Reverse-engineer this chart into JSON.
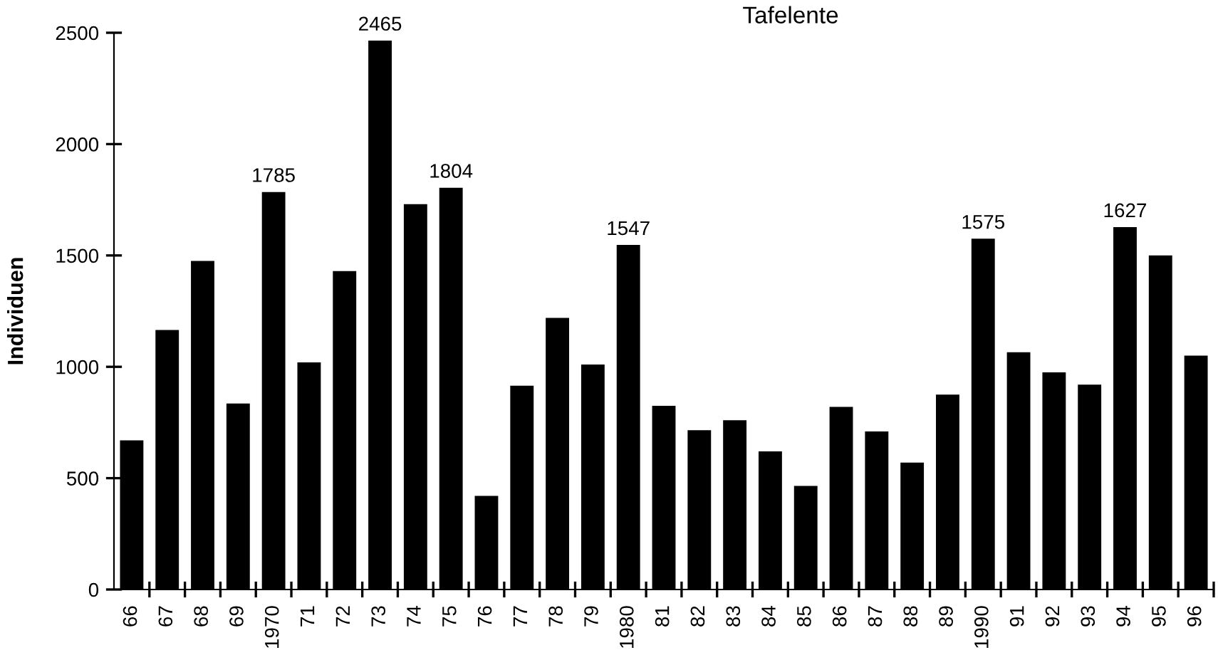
{
  "chart_data": {
    "type": "bar",
    "title": "Tafelente",
    "ylabel": "Individuen",
    "categories": [
      "66",
      "67",
      "68",
      "69",
      "1970",
      "71",
      "72",
      "73",
      "74",
      "75",
      "76",
      "77",
      "78",
      "79",
      "1980",
      "81",
      "82",
      "83",
      "84",
      "85",
      "86",
      "87",
      "88",
      "89",
      "1990",
      "91",
      "92",
      "93",
      "94",
      "95",
      "96"
    ],
    "values": [
      670,
      1165,
      1475,
      835,
      1785,
      1020,
      1430,
      2465,
      1730,
      1804,
      420,
      915,
      1220,
      1010,
      1547,
      825,
      715,
      760,
      620,
      465,
      820,
      710,
      570,
      875,
      1575,
      1065,
      975,
      920,
      1627,
      1500,
      1050
    ],
    "value_labels": [
      null,
      null,
      null,
      null,
      "1785",
      null,
      null,
      "2465",
      null,
      "1804",
      null,
      null,
      null,
      null,
      "1547",
      null,
      null,
      null,
      null,
      null,
      null,
      null,
      null,
      null,
      "1575",
      null,
      null,
      null,
      "1627",
      null,
      null
    ],
    "color": "#000000",
    "ylim": [
      0,
      2500
    ],
    "yticks": [
      0,
      500,
      1000,
      1500,
      2000,
      2500
    ],
    "grid": false,
    "legend": false
  }
}
